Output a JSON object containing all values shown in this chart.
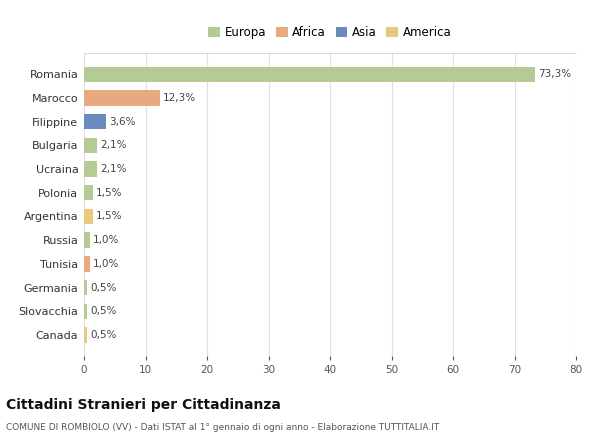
{
  "countries": [
    "Romania",
    "Marocco",
    "Filippine",
    "Bulgaria",
    "Ucraina",
    "Polonia",
    "Argentina",
    "Russia",
    "Tunisia",
    "Germania",
    "Slovacchia",
    "Canada"
  ],
  "values": [
    73.3,
    12.3,
    3.6,
    2.1,
    2.1,
    1.5,
    1.5,
    1.0,
    1.0,
    0.5,
    0.5,
    0.5
  ],
  "labels": [
    "73,3%",
    "12,3%",
    "3,6%",
    "2,1%",
    "2,1%",
    "1,5%",
    "1,5%",
    "1,0%",
    "1,0%",
    "0,5%",
    "0,5%",
    "0,5%"
  ],
  "colors": [
    "#b5cb96",
    "#e8a97e",
    "#6b8bbf",
    "#b5cb96",
    "#b5cb96",
    "#b5cb96",
    "#e8c97e",
    "#b5cb96",
    "#e8a97e",
    "#b5cb96",
    "#b5cb96",
    "#e8c97e"
  ],
  "legend": [
    {
      "label": "Europa",
      "color": "#b5cb96"
    },
    {
      "label": "Africa",
      "color": "#e8a97e"
    },
    {
      "label": "Asia",
      "color": "#6b8bbf"
    },
    {
      "label": "America",
      "color": "#e8c97e"
    }
  ],
  "xlim": [
    0,
    80
  ],
  "xticks": [
    0,
    10,
    20,
    30,
    40,
    50,
    60,
    70,
    80
  ],
  "title1": "Cittadini Stranieri per Cittadinanza",
  "title2": "COMUNE DI ROMBIOLO (VV) - Dati ISTAT al 1° gennaio di ogni anno - Elaborazione TUTTITALIA.IT",
  "bg_color": "#ffffff",
  "grid_color": "#e0e0e0",
  "bar_height": 0.65
}
